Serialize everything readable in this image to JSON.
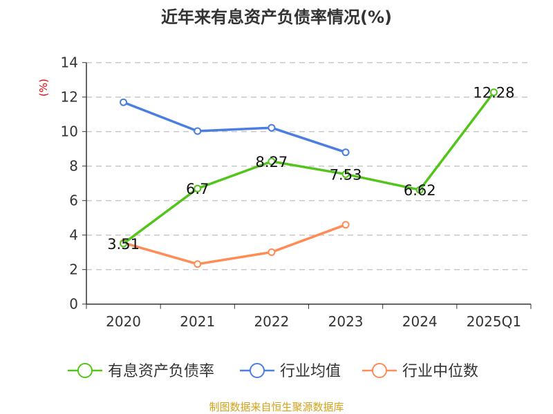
{
  "chart_data": {
    "type": "line",
    "title": "近年来有息资产负债率情况(%)",
    "ylabel": "(%)",
    "categories": [
      "2020",
      "2021",
      "2022",
      "2023",
      "2024",
      "2025Q1"
    ],
    "ylim": [
      0,
      14
    ],
    "yticks": [
      0,
      2,
      4,
      6,
      8,
      10,
      12,
      14
    ],
    "grid": true,
    "legend_position": "bottom",
    "series": [
      {
        "name": "有息资产负债率",
        "color": "#52c41a",
        "values": [
          3.51,
          6.7,
          8.27,
          7.53,
          6.62,
          12.28
        ],
        "labels": [
          "3.51",
          "6.7",
          "8.27",
          "7.53",
          "6.62",
          "12.28"
        ]
      },
      {
        "name": "行业均值",
        "color": "#4a7ee0",
        "values": [
          11.7,
          10.03,
          10.22,
          8.8,
          null,
          null
        ]
      },
      {
        "name": "行业中位数",
        "color": "#ff8c55",
        "values": [
          3.55,
          2.32,
          3.01,
          4.6,
          null,
          null
        ]
      }
    ]
  },
  "source": "制图数据来自恒生聚源数据库"
}
